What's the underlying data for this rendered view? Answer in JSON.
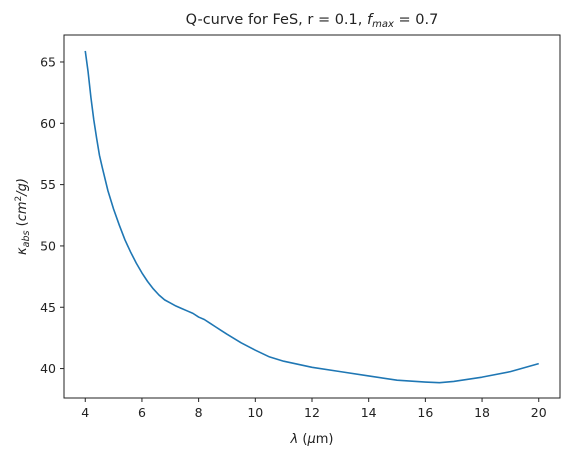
{
  "chart_data": {
    "type": "line",
    "title": {
      "prefix": "Q-curve for FeS, r = 0.1, ",
      "var": "f",
      "sub": "max",
      "suffix": " = 0.7"
    },
    "xlabel": {
      "var": "λ",
      "unit_open": " (",
      "unit_mu": "μ",
      "unit_rest": "m)"
    },
    "ylabel": {
      "var": "κ",
      "sub": "abs",
      "unit_open": " (",
      "unit": "cm",
      "sup": "2",
      "unit_close": "/g)"
    },
    "xlim": [
      3.25,
      20.75
    ],
    "ylim": [
      37.6,
      67.2
    ],
    "xticks": [
      4,
      6,
      8,
      10,
      12,
      14,
      16,
      18,
      20
    ],
    "yticks": [
      40,
      45,
      50,
      55,
      60,
      65
    ],
    "grid": false,
    "legend": "none",
    "series": [
      {
        "color": "#1f77b4",
        "x": [
          4.0,
          4.1,
          4.2,
          4.3,
          4.4,
          4.5,
          4.6,
          4.8,
          5.0,
          5.2,
          5.4,
          5.6,
          5.8,
          6.0,
          6.2,
          6.4,
          6.6,
          6.8,
          7.0,
          7.2,
          7.4,
          7.6,
          7.8,
          8.0,
          8.2,
          8.4,
          8.6,
          8.8,
          9.0,
          9.5,
          10.0,
          10.5,
          11.0,
          12.0,
          13.0,
          14.0,
          15.0,
          16.0,
          16.5,
          17.0,
          18.0,
          19.0,
          20.0
        ],
        "y": [
          65.9,
          64.2,
          62.1,
          60.3,
          58.8,
          57.4,
          56.4,
          54.5,
          53.0,
          51.7,
          50.5,
          49.5,
          48.6,
          47.8,
          47.1,
          46.5,
          46.0,
          45.6,
          45.35,
          45.1,
          44.9,
          44.7,
          44.5,
          44.2,
          44.0,
          43.7,
          43.4,
          43.1,
          42.8,
          42.1,
          41.5,
          40.95,
          40.6,
          40.1,
          39.75,
          39.4,
          39.05,
          38.9,
          38.85,
          38.95,
          39.3,
          39.75,
          40.4
        ]
      }
    ]
  }
}
